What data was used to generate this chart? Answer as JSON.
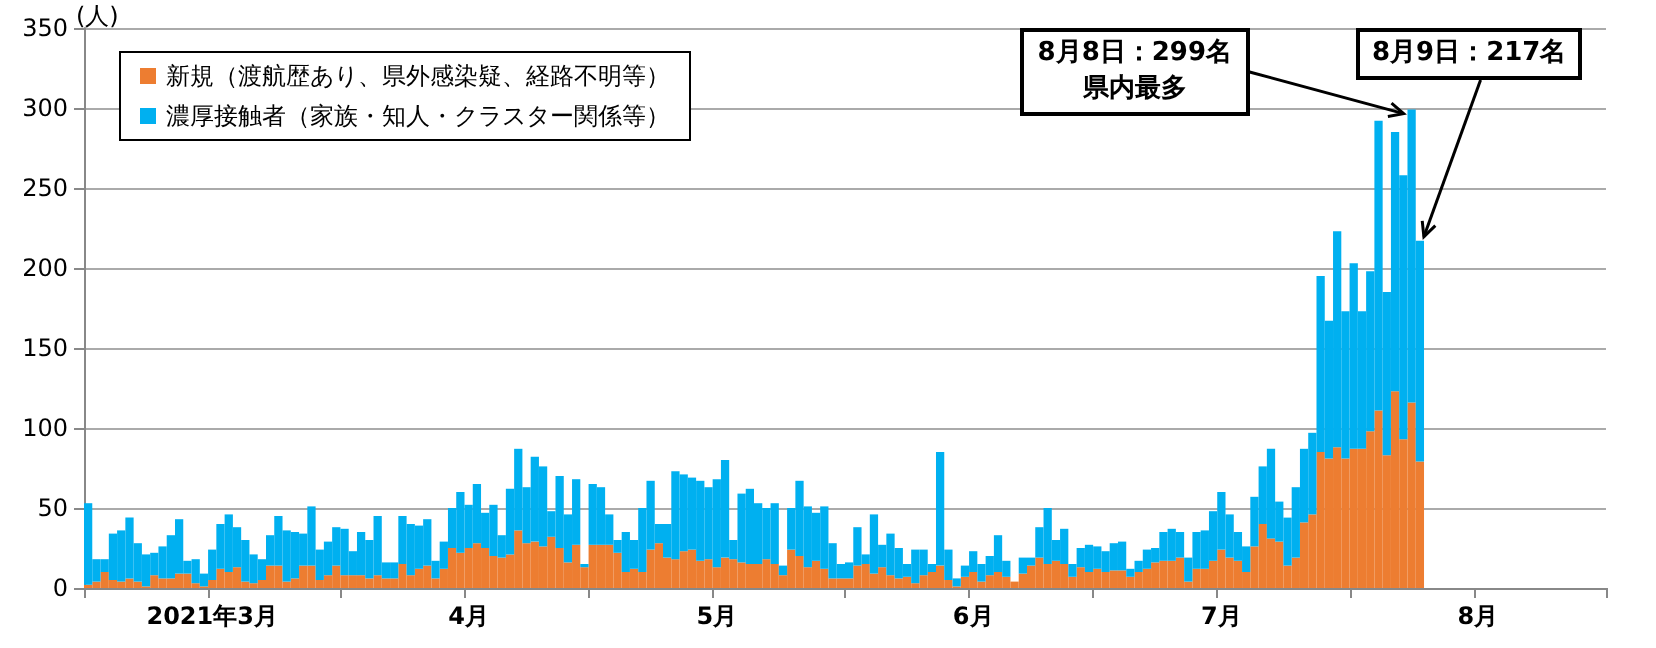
{
  "chart_data": {
    "type": "bar",
    "stacked": true,
    "ylabel": "(人)",
    "x": [
      "2021-03-01",
      "2021-03-02",
      "2021-03-03",
      "2021-03-04",
      "2021-03-05",
      "2021-03-06",
      "2021-03-07",
      "2021-03-08",
      "2021-03-09",
      "2021-03-10",
      "2021-03-11",
      "2021-03-12",
      "2021-03-13",
      "2021-03-14",
      "2021-03-15",
      "2021-03-16",
      "2021-03-17",
      "2021-03-18",
      "2021-03-19",
      "2021-03-20",
      "2021-03-21",
      "2021-03-22",
      "2021-03-23",
      "2021-03-24",
      "2021-03-25",
      "2021-03-26",
      "2021-03-27",
      "2021-03-28",
      "2021-03-29",
      "2021-03-30",
      "2021-03-31",
      "2021-04-01",
      "2021-04-02",
      "2021-04-03",
      "2021-04-04",
      "2021-04-05",
      "2021-04-06",
      "2021-04-07",
      "2021-04-08",
      "2021-04-09",
      "2021-04-10",
      "2021-04-11",
      "2021-04-12",
      "2021-04-13",
      "2021-04-14",
      "2021-04-15",
      "2021-04-16",
      "2021-04-17",
      "2021-04-18",
      "2021-04-19",
      "2021-04-20",
      "2021-04-21",
      "2021-04-22",
      "2021-04-23",
      "2021-04-24",
      "2021-04-25",
      "2021-04-26",
      "2021-04-27",
      "2021-04-28",
      "2021-04-29",
      "2021-04-30",
      "2021-05-01",
      "2021-05-02",
      "2021-05-03",
      "2021-05-04",
      "2021-05-05",
      "2021-05-06",
      "2021-05-07",
      "2021-05-08",
      "2021-05-09",
      "2021-05-10",
      "2021-05-11",
      "2021-05-12",
      "2021-05-13",
      "2021-05-14",
      "2021-05-15",
      "2021-05-16",
      "2021-05-17",
      "2021-05-18",
      "2021-05-19",
      "2021-05-20",
      "2021-05-21",
      "2021-05-22",
      "2021-05-23",
      "2021-05-24",
      "2021-05-25",
      "2021-05-26",
      "2021-05-27",
      "2021-05-28",
      "2021-05-29",
      "2021-05-30",
      "2021-05-31",
      "2021-06-01",
      "2021-06-02",
      "2021-06-03",
      "2021-06-04",
      "2021-06-05",
      "2021-06-06",
      "2021-06-07",
      "2021-06-08",
      "2021-06-09",
      "2021-06-10",
      "2021-06-11",
      "2021-06-12",
      "2021-06-13",
      "2021-06-14",
      "2021-06-15",
      "2021-06-16",
      "2021-06-17",
      "2021-06-18",
      "2021-06-19",
      "2021-06-20",
      "2021-06-21",
      "2021-06-22",
      "2021-06-23",
      "2021-06-24",
      "2021-06-25",
      "2021-06-26",
      "2021-06-27",
      "2021-06-28",
      "2021-06-29",
      "2021-06-30",
      "2021-07-01",
      "2021-07-02",
      "2021-07-03",
      "2021-07-04",
      "2021-07-05",
      "2021-07-06",
      "2021-07-07",
      "2021-07-08",
      "2021-07-09",
      "2021-07-10",
      "2021-07-11",
      "2021-07-12",
      "2021-07-13",
      "2021-07-14",
      "2021-07-15",
      "2021-07-16",
      "2021-07-17",
      "2021-07-18",
      "2021-07-19",
      "2021-07-20",
      "2021-07-21",
      "2021-07-22",
      "2021-07-23",
      "2021-07-24",
      "2021-07-25",
      "2021-07-26",
      "2021-07-27",
      "2021-07-28",
      "2021-07-29",
      "2021-07-30",
      "2021-07-31",
      "2021-08-01",
      "2021-08-02",
      "2021-08-03",
      "2021-08-04",
      "2021-08-05",
      "2021-08-06",
      "2021-08-07",
      "2021-08-08",
      "2021-08-09"
    ],
    "series": [
      {
        "name": "新規（渡航歴あり、県外感染疑、経路不明等）",
        "color": "#ed7d31",
        "values": [
          2,
          4,
          10,
          5,
          4,
          6,
          4,
          1,
          8,
          6,
          6,
          9,
          9,
          3,
          1,
          5,
          12,
          10,
          13,
          4,
          3,
          5,
          14,
          14,
          4,
          6,
          14,
          14,
          5,
          8,
          14,
          8,
          8,
          8,
          6,
          8,
          6,
          6,
          15,
          8,
          12,
          14,
          6,
          12,
          25,
          22,
          25,
          28,
          25,
          20,
          19,
          21,
          36,
          28,
          29,
          26,
          32,
          25,
          16,
          27,
          13,
          27,
          27,
          27,
          22,
          10,
          12,
          10,
          24,
          28,
          19,
          18,
          23,
          24,
          17,
          18,
          13,
          19,
          18,
          16,
          15,
          15,
          18,
          15,
          8,
          24,
          20,
          13,
          17,
          12,
          6,
          6,
          6,
          14,
          15,
          9,
          13,
          8,
          6,
          7,
          3,
          8,
          10,
          14,
          5,
          1,
          7,
          10,
          4,
          8,
          10,
          7,
          4,
          9,
          14,
          19,
          15,
          17,
          15,
          7,
          13,
          10,
          12,
          10,
          11,
          11,
          7,
          10,
          12,
          16,
          17,
          17,
          19,
          4,
          12,
          12,
          17,
          24,
          19,
          17,
          10,
          26,
          40,
          31,
          29,
          14,
          19,
          41,
          46,
          85,
          81,
          88,
          81,
          87,
          87,
          98,
          111,
          83,
          123,
          93,
          116,
          79
        ]
      },
      {
        "name": "濃厚接触者（家族・知人・クラスター関係等）",
        "color": "#00b0f0",
        "values": [
          51,
          14,
          8,
          29,
          32,
          38,
          24,
          20,
          14,
          20,
          27,
          34,
          8,
          15,
          8,
          19,
          28,
          36,
          25,
          26,
          18,
          13,
          19,
          31,
          32,
          29,
          20,
          37,
          19,
          21,
          24,
          29,
          15,
          27,
          24,
          37,
          10,
          10,
          30,
          32,
          27,
          29,
          11,
          17,
          25,
          38,
          27,
          37,
          22,
          32,
          14,
          41,
          51,
          35,
          53,
          50,
          16,
          45,
          30,
          41,
          2,
          38,
          36,
          19,
          8,
          25,
          18,
          40,
          43,
          12,
          21,
          55,
          48,
          45,
          50,
          45,
          55,
          61,
          12,
          43,
          47,
          38,
          32,
          38,
          6,
          26,
          47,
          38,
          30,
          39,
          22,
          9,
          10,
          24,
          6,
          37,
          14,
          26,
          19,
          8,
          21,
          16,
          5,
          71,
          19,
          5,
          7,
          13,
          11,
          12,
          23,
          10,
          0,
          10,
          5,
          19,
          35,
          13,
          22,
          8,
          12,
          17,
          14,
          13,
          17,
          18,
          5,
          7,
          12,
          9,
          18,
          20,
          16,
          15,
          23,
          24,
          31,
          36,
          27,
          18,
          16,
          31,
          36,
          56,
          25,
          30,
          44,
          46,
          51,
          110,
          86,
          135,
          92,
          116,
          86,
          100,
          181,
          102,
          162,
          165,
          183,
          138
        ]
      }
    ],
    "xlim": [
      "2021-03-01",
      "2021-09-01"
    ],
    "xticks": [
      {
        "value": "2021-03-01",
        "label": null
      },
      {
        "value": "2021-03-16",
        "label": "2021年3月"
      },
      {
        "value": "2021-04-01",
        "label": null
      },
      {
        "value": "2021-04-16",
        "label": "4月"
      },
      {
        "value": "2021-05-01",
        "label": null
      },
      {
        "value": "2021-05-16",
        "label": "5月"
      },
      {
        "value": "2021-06-01",
        "label": null
      },
      {
        "value": "2021-06-16",
        "label": "6月"
      },
      {
        "value": "2021-07-01",
        "label": null
      },
      {
        "value": "2021-07-16",
        "label": "7月"
      },
      {
        "value": "2021-08-01",
        "label": null
      },
      {
        "value": "2021-08-16",
        "label": "8月"
      },
      {
        "value": "2021-09-01",
        "label": null
      }
    ],
    "ylim": [
      0,
      350
    ],
    "yticks": [
      0,
      50,
      100,
      150,
      200,
      250,
      300,
      350
    ],
    "grid": "y",
    "legend": "top left",
    "annotations": [
      {
        "text": "8月8日：299名県内最多",
        "x": "2021-08-08",
        "y": 299
      },
      {
        "text": "8月9日：217名",
        "x": "2021-08-09",
        "y": 217
      }
    ]
  }
}
